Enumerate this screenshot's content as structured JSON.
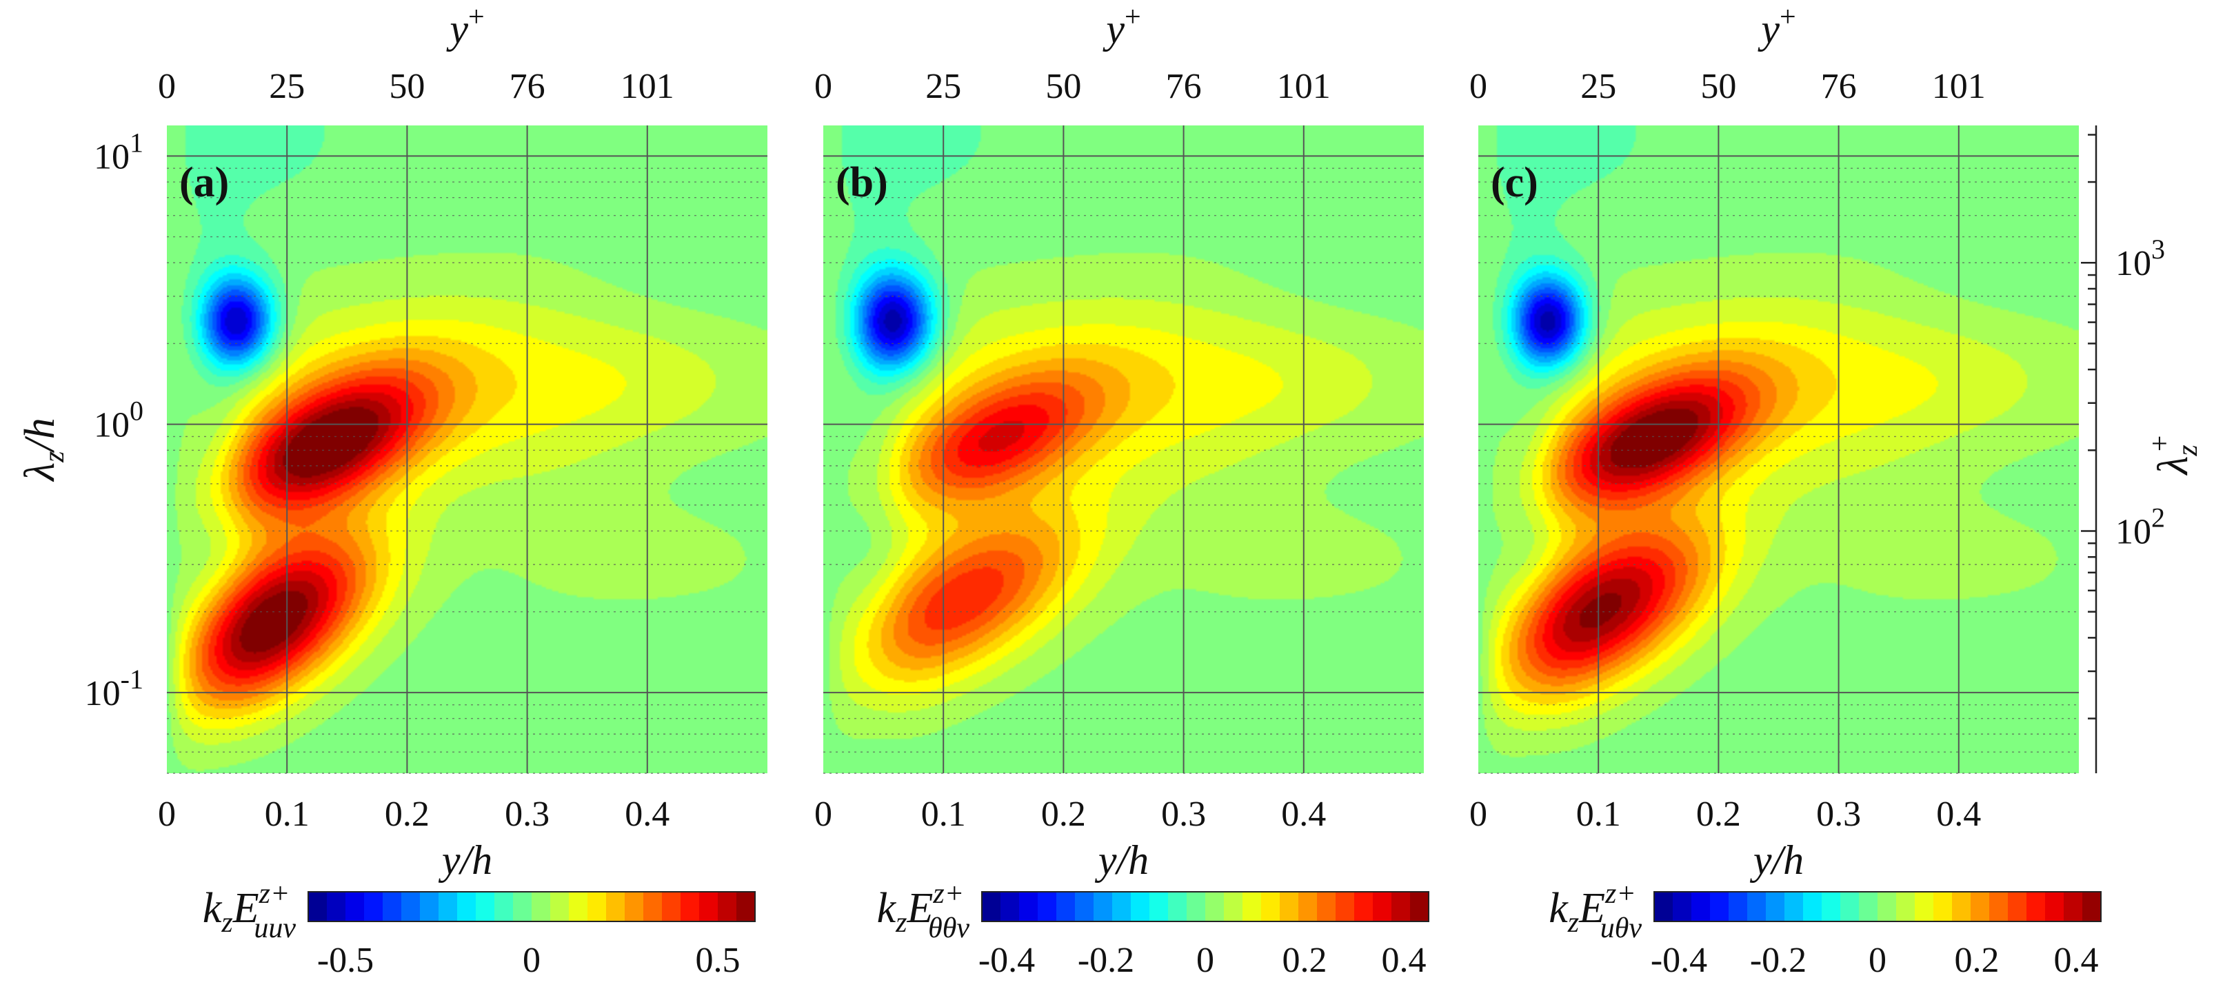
{
  "chart_data": [
    {
      "type": "heatmap",
      "panel_label": "(a)",
      "xlabel": "y/h",
      "ylabel": "λz/h",
      "top_xlabel": "y+",
      "right_ylabel": "λz+",
      "xlim": [
        0,
        0.5
      ],
      "ylim": [
        0.05,
        13
      ],
      "xticks": [
        {
          "v": 0,
          "label": "0"
        },
        {
          "v": 0.1,
          "label": "0.1"
        },
        {
          "v": 0.2,
          "label": "0.2"
        },
        {
          "v": 0.3,
          "label": "0.3"
        },
        {
          "v": 0.4,
          "label": "0.4"
        }
      ],
      "top_xticks": [
        {
          "v": 0,
          "label": "0"
        },
        {
          "v": 0.1,
          "label": "25"
        },
        {
          "v": 0.2,
          "label": "50"
        },
        {
          "v": 0.3,
          "label": "76"
        },
        {
          "v": 0.4,
          "label": "101"
        }
      ],
      "yticks": [
        {
          "v": 0.1,
          "base": "10",
          "exp": "-1"
        },
        {
          "v": 1,
          "base": "10",
          "exp": "0"
        },
        {
          "v": 10,
          "base": "10",
          "exp": "1"
        }
      ],
      "right_yticks": [
        {
          "v": 0.4,
          "base": "10",
          "exp": "2"
        },
        {
          "v": 4,
          "base": "10",
          "exp": "3"
        }
      ],
      "colorbar": {
        "label_main": "kzE",
        "label_sup": "z+",
        "label_sub": "uuv",
        "range": [
          -0.6,
          0.6
        ],
        "ticks": [
          {
            "v": -0.5,
            "label": "-0.5"
          },
          {
            "v": 0,
            "label": "0"
          },
          {
            "v": 0.5,
            "label": "0.5"
          }
        ]
      },
      "features": [
        {
          "kind": "negative peak",
          "y": 0.055,
          "lambda": 2.5,
          "value": -0.45
        },
        {
          "kind": "positive peak",
          "y": 0.13,
          "lambda": 0.85,
          "value": 0.5
        },
        {
          "kind": "positive peak",
          "y": 0.09,
          "lambda": 0.2,
          "value": 0.55
        }
      ]
    },
    {
      "type": "heatmap",
      "panel_label": "(b)",
      "xlabel": "y/h",
      "top_xlabel": "y+",
      "xlim": [
        0,
        0.5
      ],
      "ylim": [
        0.05,
        13
      ],
      "xticks": [
        {
          "v": 0,
          "label": "0"
        },
        {
          "v": 0.1,
          "label": "0.1"
        },
        {
          "v": 0.2,
          "label": "0.2"
        },
        {
          "v": 0.3,
          "label": "0.3"
        },
        {
          "v": 0.4,
          "label": "0.4"
        }
      ],
      "top_xticks": [
        {
          "v": 0,
          "label": "0"
        },
        {
          "v": 0.1,
          "label": "25"
        },
        {
          "v": 0.2,
          "label": "50"
        },
        {
          "v": 0.3,
          "label": "76"
        },
        {
          "v": 0.4,
          "label": "101"
        }
      ],
      "colorbar": {
        "label_main": "kzE",
        "label_sup": "z+",
        "label_sub": "θθv",
        "range": [
          -0.45,
          0.45
        ],
        "ticks": [
          {
            "v": -0.4,
            "label": "-0.4"
          },
          {
            "v": -0.2,
            "label": "-0.2"
          },
          {
            "v": 0,
            "label": "0"
          },
          {
            "v": 0.2,
            "label": "0.2"
          },
          {
            "v": 0.4,
            "label": "0.4"
          }
        ]
      },
      "features": [
        {
          "kind": "negative peak",
          "y": 0.055,
          "lambda": 2.5,
          "value": -0.42
        },
        {
          "kind": "positive peak",
          "y": 0.14,
          "lambda": 0.85,
          "value": 0.3
        },
        {
          "kind": "positive peak",
          "y": 0.12,
          "lambda": 0.22,
          "value": 0.32
        }
      ]
    },
    {
      "type": "heatmap",
      "panel_label": "(c)",
      "xlabel": "y/h",
      "top_xlabel": "y+",
      "xlim": [
        0,
        0.5
      ],
      "ylim": [
        0.05,
        13
      ],
      "xticks": [
        {
          "v": 0,
          "label": "0"
        },
        {
          "v": 0.1,
          "label": "0.1"
        },
        {
          "v": 0.2,
          "label": "0.2"
        },
        {
          "v": 0.3,
          "label": "0.3"
        },
        {
          "v": 0.4,
          "label": "0.4"
        }
      ],
      "top_xticks": [
        {
          "v": 0,
          "label": "0"
        },
        {
          "v": 0.1,
          "label": "25"
        },
        {
          "v": 0.2,
          "label": "50"
        },
        {
          "v": 0.3,
          "label": "76"
        },
        {
          "v": 0.4,
          "label": "101"
        }
      ],
      "colorbar": {
        "label_main": "kzE",
        "label_sup": "z+",
        "label_sub": "uθv",
        "range": [
          -0.45,
          0.45
        ],
        "ticks": [
          {
            "v": -0.4,
            "label": "-0.4"
          },
          {
            "v": -0.2,
            "label": "-0.2"
          },
          {
            "v": 0,
            "label": "0"
          },
          {
            "v": 0.2,
            "label": "0.2"
          },
          {
            "v": 0.4,
            "label": "0.4"
          }
        ]
      },
      "features": [
        {
          "kind": "negative peak",
          "y": 0.055,
          "lambda": 2.5,
          "value": -0.42
        },
        {
          "kind": "positive peak",
          "y": 0.14,
          "lambda": 0.85,
          "value": 0.42
        },
        {
          "kind": "positive peak",
          "y": 0.1,
          "lambda": 0.2,
          "value": 0.43
        }
      ]
    }
  ]
}
